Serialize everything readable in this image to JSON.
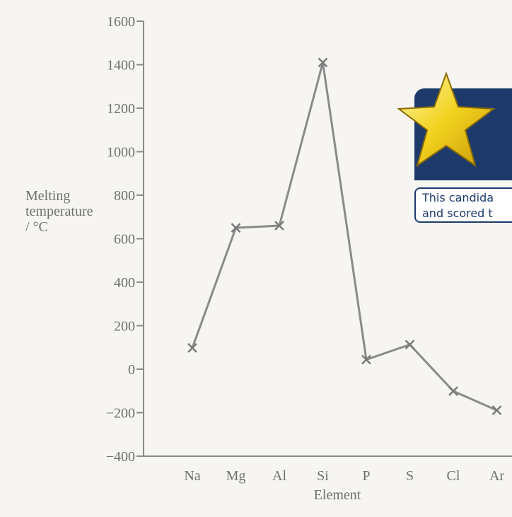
{
  "chart_data": {
    "type": "line",
    "categories": [
      "Na",
      "Mg",
      "Al",
      "Si",
      "P",
      "S",
      "Cl",
      "Ar"
    ],
    "series": [
      {
        "values": [
          98,
          650,
          660,
          1410,
          44,
          113,
          -101,
          -189
        ]
      }
    ],
    "xlabel": "Element",
    "ylabel": [
      "Melting",
      "temperature",
      "/ °C"
    ],
    "ylim": [
      -400,
      1600
    ],
    "yticks": [
      "1600",
      "1400",
      "1200",
      "1000",
      "800",
      "600",
      "400",
      "200",
      "0",
      "−200",
      "−400"
    ],
    "grid": false,
    "marker": "cross",
    "line_color": "#8a8a8a"
  },
  "note": {
    "icon": "star-icon",
    "line1": "This candida",
    "line2": "and scored t",
    "header_color": "#1d3a6b",
    "star_color": "#f2d21e"
  }
}
